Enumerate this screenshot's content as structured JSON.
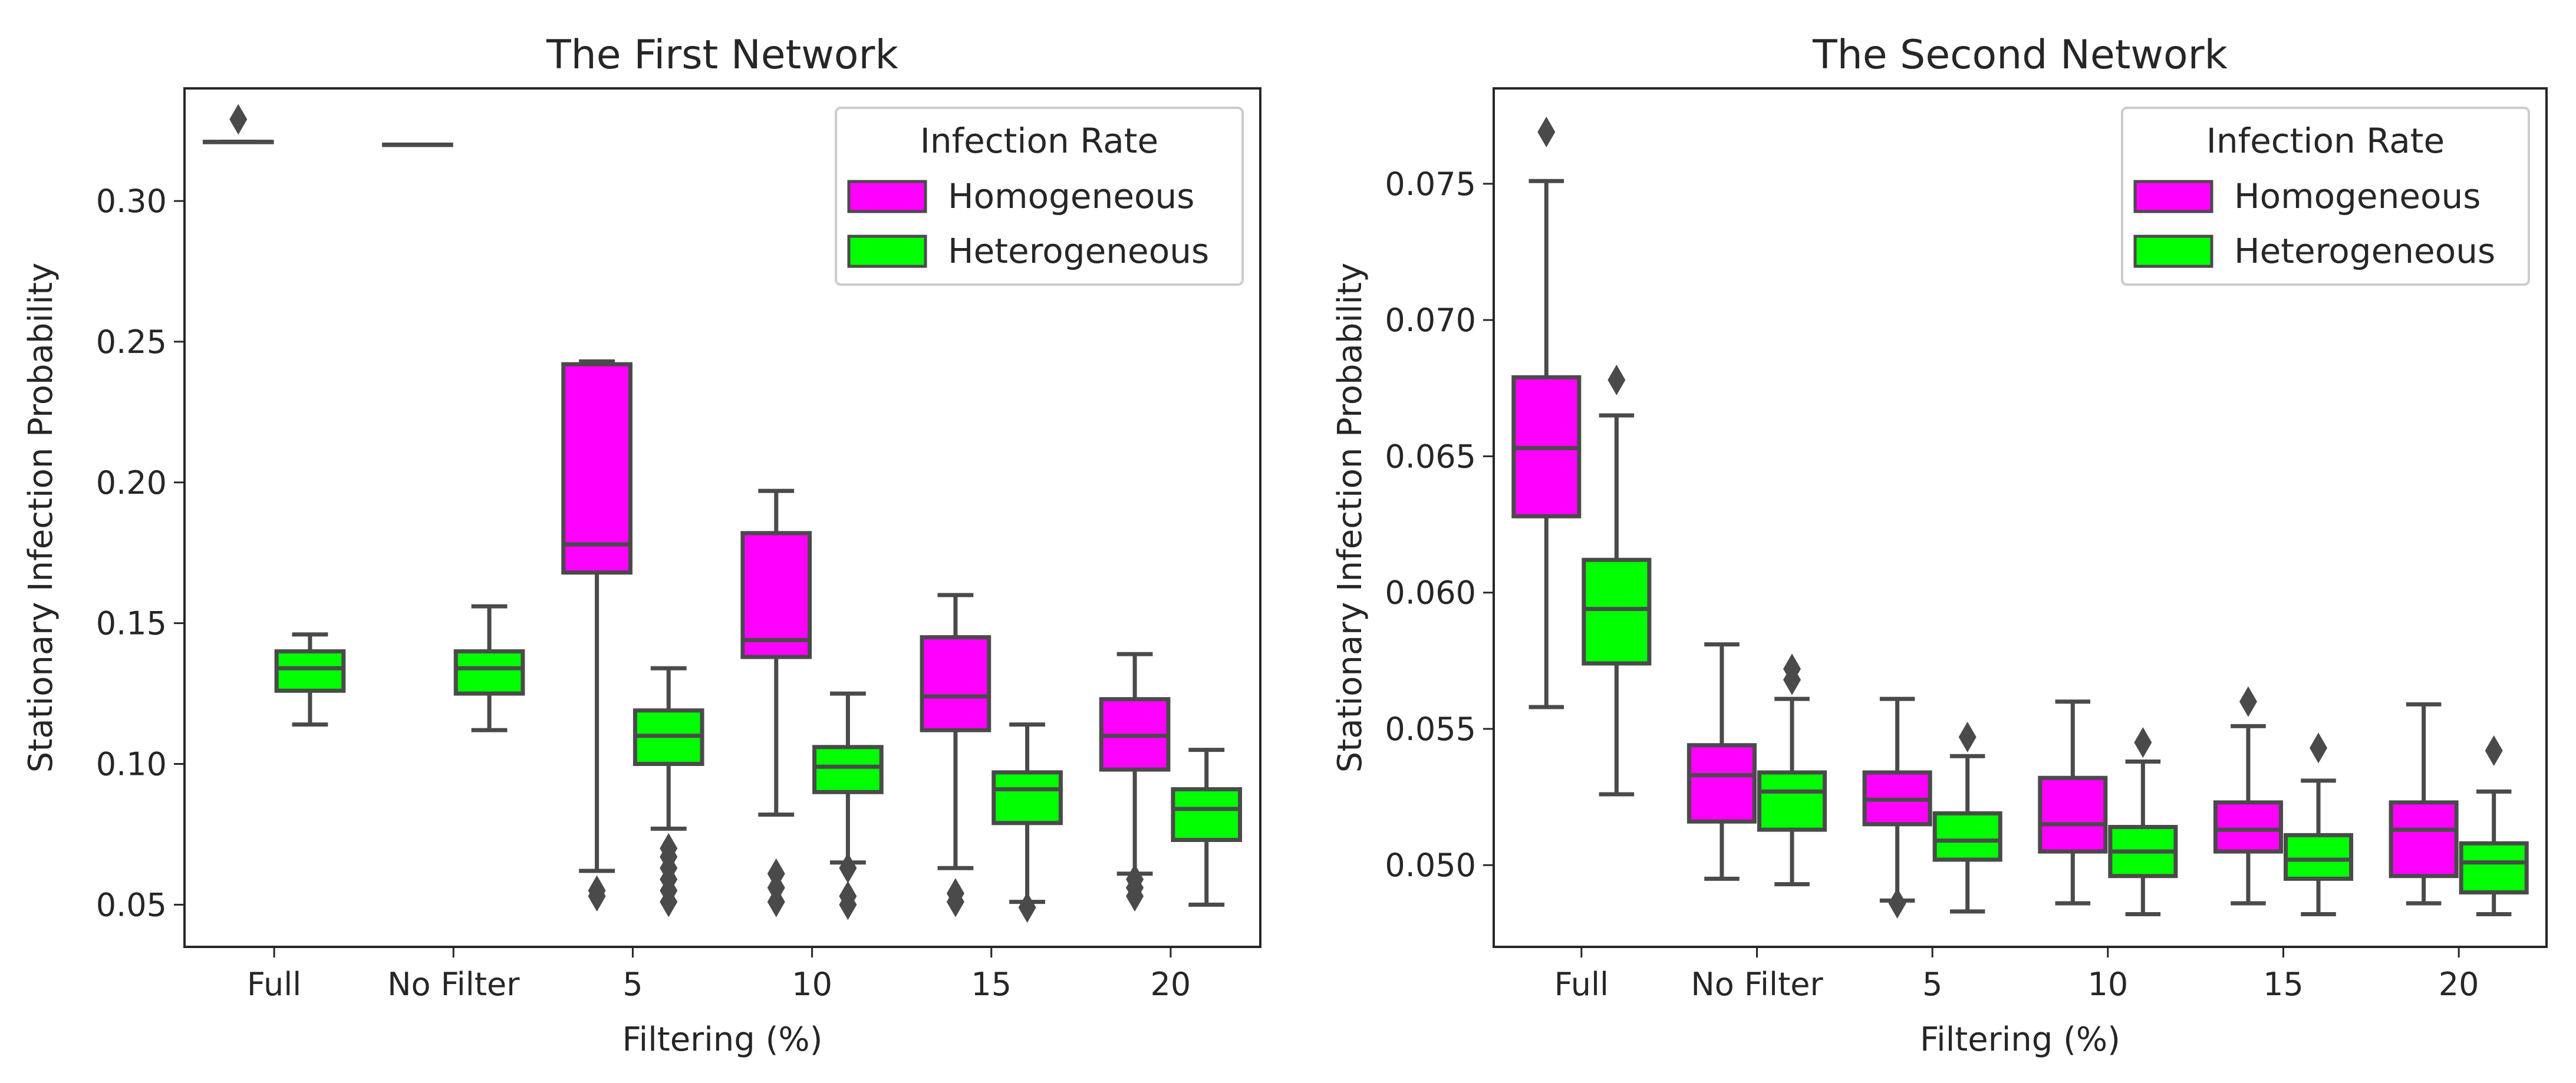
{
  "chart_data": [
    {
      "type": "box",
      "title": "The First Network",
      "xlabel": "Filtering (%)",
      "ylabel": "Stationary Infection Probability",
      "categories": [
        "Full",
        "No Filter",
        "5",
        "10",
        "15",
        "20"
      ],
      "ylim": [
        0.035,
        0.34
      ],
      "yticks": [
        0.05,
        0.1,
        0.15,
        0.2,
        0.25,
        0.3
      ],
      "ytick_labels": [
        "0.05",
        "0.10",
        "0.15",
        "0.20",
        "0.25",
        "0.30"
      ],
      "legend": {
        "title": "Infection Rate",
        "location": "top-right",
        "entries": [
          "Homogeneous",
          "Heterogeneous"
        ]
      },
      "series": [
        {
          "name": "Homogeneous",
          "color": "#ff00ff",
          "boxes": [
            {
              "min": 0.321,
              "q1": 0.321,
              "median": 0.321,
              "q3": 0.321,
              "max": 0.321,
              "outliers": [
                0.329
              ]
            },
            {
              "min": 0.32,
              "q1": 0.32,
              "median": 0.32,
              "q3": 0.32,
              "max": 0.32,
              "outliers": []
            },
            {
              "min": 0.062,
              "q1": 0.168,
              "median": 0.178,
              "q3": 0.242,
              "max": 0.243,
              "outliers": [
                0.053,
                0.055
              ]
            },
            {
              "min": 0.082,
              "q1": 0.138,
              "median": 0.144,
              "q3": 0.182,
              "max": 0.197,
              "outliers": [
                0.051,
                0.056,
                0.061
              ]
            },
            {
              "min": 0.063,
              "q1": 0.112,
              "median": 0.124,
              "q3": 0.145,
              "max": 0.16,
              "outliers": [
                0.051,
                0.054
              ]
            },
            {
              "min": 0.061,
              "q1": 0.098,
              "median": 0.11,
              "q3": 0.123,
              "max": 0.139,
              "outliers": [
                0.053,
                0.056,
                0.059
              ]
            }
          ]
        },
        {
          "name": "Heterogeneous",
          "color": "#00ff00",
          "boxes": [
            {
              "min": 0.114,
              "q1": 0.126,
              "median": 0.134,
              "q3": 0.14,
              "max": 0.146,
              "outliers": []
            },
            {
              "min": 0.112,
              "q1": 0.125,
              "median": 0.134,
              "q3": 0.14,
              "max": 0.156,
              "outliers": []
            },
            {
              "min": 0.077,
              "q1": 0.1,
              "median": 0.11,
              "q3": 0.119,
              "max": 0.134,
              "outliers": [
                0.051,
                0.055,
                0.059,
                0.063,
                0.067,
                0.07
              ]
            },
            {
              "min": 0.065,
              "q1": 0.09,
              "median": 0.099,
              "q3": 0.106,
              "max": 0.125,
              "outliers": [
                0.05,
                0.053,
                0.063
              ]
            },
            {
              "min": 0.051,
              "q1": 0.079,
              "median": 0.091,
              "q3": 0.097,
              "max": 0.114,
              "outliers": [
                0.049
              ]
            },
            {
              "min": 0.05,
              "q1": 0.073,
              "median": 0.084,
              "q3": 0.091,
              "max": 0.105,
              "outliers": []
            }
          ]
        }
      ]
    },
    {
      "type": "box",
      "title": "The Second Network",
      "xlabel": "Filtering (%)",
      "ylabel": "Stationary Infection Probability",
      "categories": [
        "Full",
        "No Filter",
        "5",
        "10",
        "15",
        "20"
      ],
      "ylim": [
        0.047,
        0.0785
      ],
      "yticks": [
        0.05,
        0.055,
        0.06,
        0.065,
        0.07,
        0.075
      ],
      "ytick_labels": [
        "0.050",
        "0.055",
        "0.060",
        "0.065",
        "0.070",
        "0.075"
      ],
      "legend": {
        "title": "Infection Rate",
        "location": "top-right",
        "entries": [
          "Homogeneous",
          "Heterogeneous"
        ]
      },
      "series": [
        {
          "name": "Homogeneous",
          "color": "#ff00ff",
          "boxes": [
            {
              "min": 0.0558,
              "q1": 0.0628,
              "median": 0.0653,
              "q3": 0.0679,
              "max": 0.0751,
              "outliers": [
                0.0769
              ]
            },
            {
              "min": 0.0495,
              "q1": 0.0516,
              "median": 0.0533,
              "q3": 0.0544,
              "max": 0.0581,
              "outliers": []
            },
            {
              "min": 0.0487,
              "q1": 0.0515,
              "median": 0.0524,
              "q3": 0.0534,
              "max": 0.0561,
              "outliers": [
                0.0486
              ]
            },
            {
              "min": 0.0486,
              "q1": 0.0505,
              "median": 0.0515,
              "q3": 0.0532,
              "max": 0.056,
              "outliers": []
            },
            {
              "min": 0.0486,
              "q1": 0.0505,
              "median": 0.0513,
              "q3": 0.0523,
              "max": 0.0551,
              "outliers": [
                0.056
              ]
            },
            {
              "min": 0.0486,
              "q1": 0.0496,
              "median": 0.0513,
              "q3": 0.0523,
              "max": 0.0559,
              "outliers": []
            }
          ]
        },
        {
          "name": "Heterogeneous",
          "color": "#00ff00",
          "boxes": [
            {
              "min": 0.0526,
              "q1": 0.0574,
              "median": 0.0594,
              "q3": 0.0612,
              "max": 0.0665,
              "outliers": [
                0.0678
              ]
            },
            {
              "min": 0.0493,
              "q1": 0.0513,
              "median": 0.0527,
              "q3": 0.0534,
              "max": 0.0561,
              "outliers": [
                0.0568,
                0.0572
              ]
            },
            {
              "min": 0.0483,
              "q1": 0.0502,
              "median": 0.0509,
              "q3": 0.0519,
              "max": 0.054,
              "outliers": [
                0.0547
              ]
            },
            {
              "min": 0.0482,
              "q1": 0.0496,
              "median": 0.0505,
              "q3": 0.0514,
              "max": 0.0538,
              "outliers": [
                0.0545
              ]
            },
            {
              "min": 0.0482,
              "q1": 0.0495,
              "median": 0.0502,
              "q3": 0.0511,
              "max": 0.0531,
              "outliers": [
                0.0543
              ]
            },
            {
              "min": 0.0482,
              "q1": 0.049,
              "median": 0.0501,
              "q3": 0.0508,
              "max": 0.0527,
              "outliers": [
                0.0542
              ]
            }
          ]
        }
      ]
    }
  ]
}
